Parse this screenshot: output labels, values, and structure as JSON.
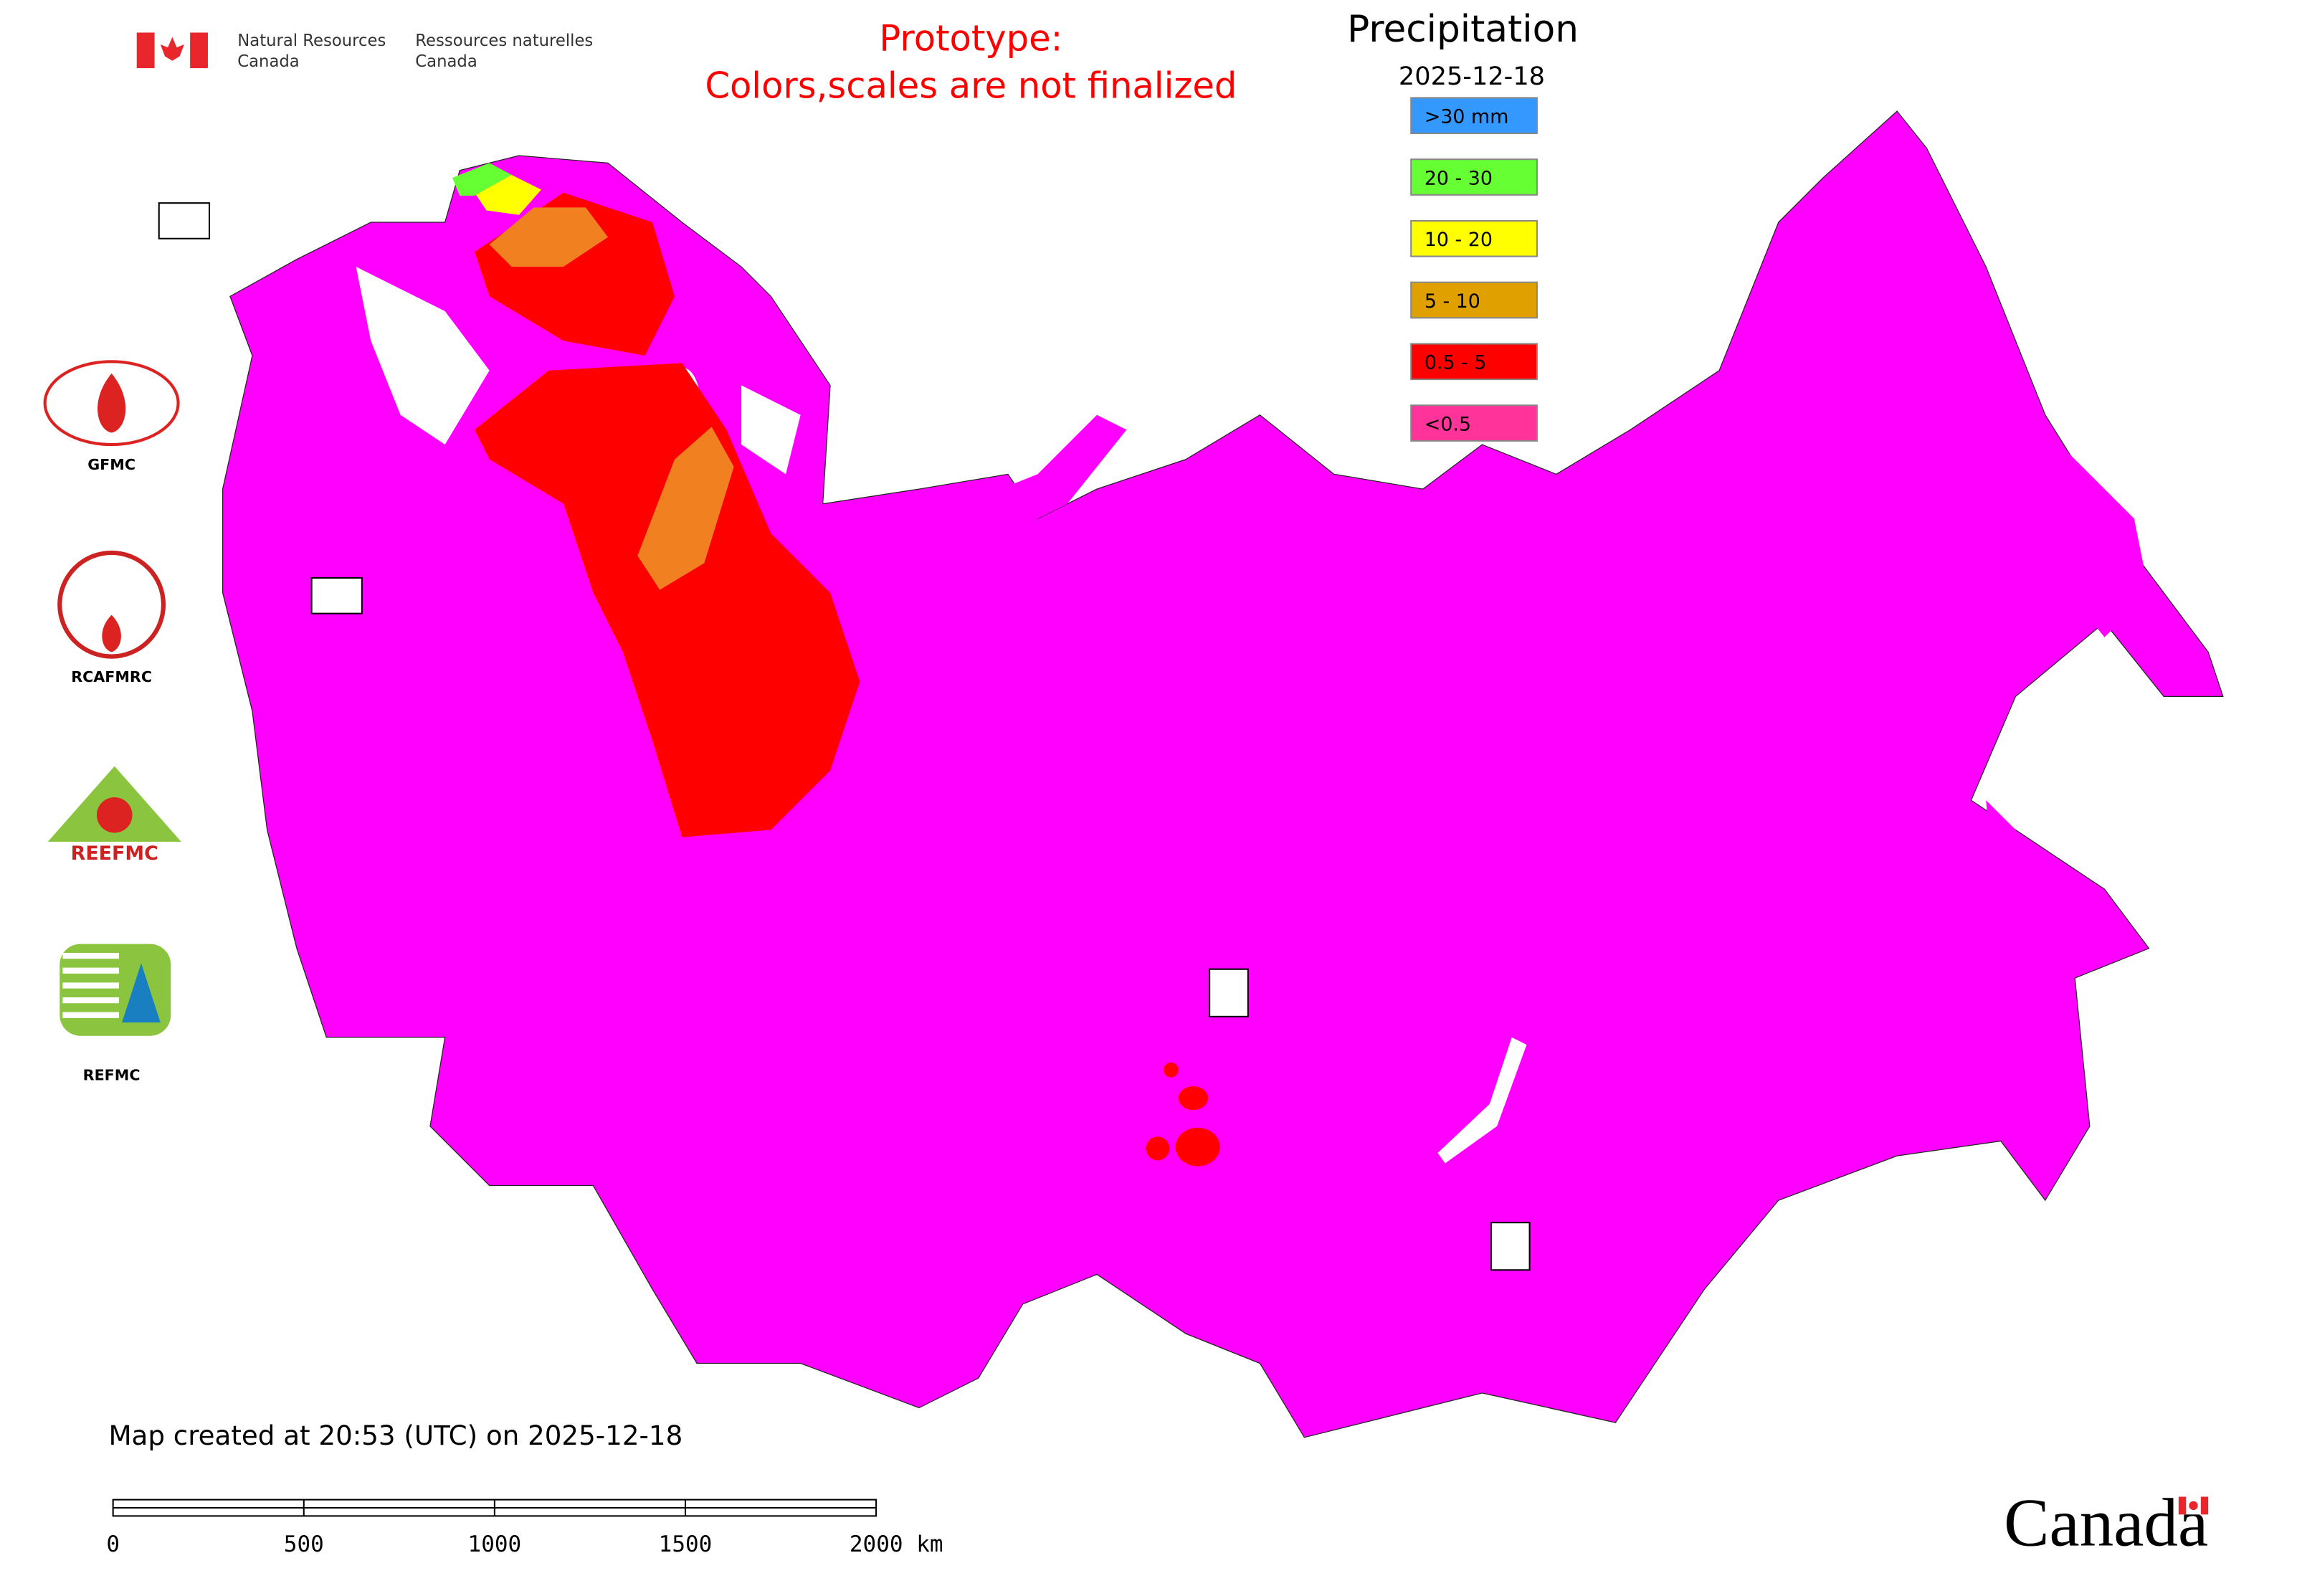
{
  "header": {
    "agency_en": [
      "Natural Resources",
      "Canada"
    ],
    "agency_fr": [
      "Ressources naturelles",
      "Canada"
    ],
    "notice": [
      "Prototype:",
      "Colors,scales are not finalized"
    ]
  },
  "legend": {
    "title": "Precipitation",
    "date": "2025-12-18",
    "items": [
      {
        "label": ">30 mm",
        "color": "#3399ff"
      },
      {
        "label": "20 - 30",
        "color": "#66ff33"
      },
      {
        "label": "10 - 20",
        "color": "#ffff00"
      },
      {
        "label": "5 - 10",
        "color": "#e0a000"
      },
      {
        "label": "0.5 - 5",
        "color": "#ff0000"
      },
      {
        "label": "<0.5",
        "color": "#ff3399"
      }
    ]
  },
  "logos": [
    "GFMC",
    "RCAFMRC",
    "REEFMC",
    "REFMC"
  ],
  "footer": {
    "created": "Map created at 20:53 (UTC) on 2025-12-18",
    "wordmark": "Canada"
  },
  "scale_bar": {
    "labels": [
      "0",
      "500",
      "1000",
      "1500",
      "2000 km"
    ]
  }
}
